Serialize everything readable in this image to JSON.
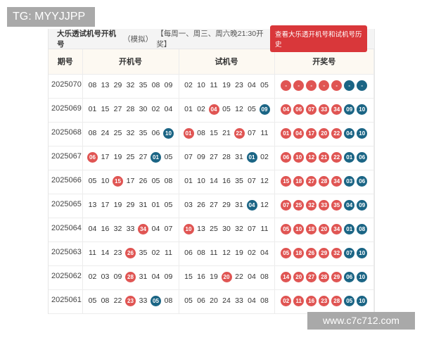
{
  "overlay_label": "TG: MYYJJPP",
  "watermark": "www.c7c712.com",
  "header": {
    "title": "大乐透试机号开机号",
    "subtitle": "（模拟）",
    "schedule": "【每周一、周三、周六晚21:30开奖】",
    "history_button": "查看大乐透开机号和试机号历史"
  },
  "columns": [
    "期号",
    "开机号",
    "试机号",
    "开奖号"
  ],
  "colors": {
    "red": "#e05553",
    "blue": "#1b6585",
    "button": "#d9373a"
  },
  "rows": [
    {
      "period": "2025070",
      "open": [
        [
          "08",
          ""
        ],
        [
          "13",
          ""
        ],
        [
          "29",
          ""
        ],
        [
          "32",
          ""
        ],
        [
          "35",
          ""
        ],
        [
          "08",
          ""
        ],
        [
          "09",
          ""
        ]
      ],
      "trial": [
        [
          "02",
          ""
        ],
        [
          "10",
          ""
        ],
        [
          "11",
          ""
        ],
        [
          "19",
          ""
        ],
        [
          "23",
          ""
        ],
        [
          "04",
          ""
        ],
        [
          "05",
          ""
        ]
      ],
      "win": [
        [
          "-",
          "red"
        ],
        [
          "-",
          "red"
        ],
        [
          "-",
          "red"
        ],
        [
          "-",
          "red"
        ],
        [
          "-",
          "red"
        ],
        [
          "-",
          "blue"
        ],
        [
          "-",
          "blue"
        ]
      ]
    },
    {
      "period": "2025069",
      "open": [
        [
          "01",
          ""
        ],
        [
          "15",
          ""
        ],
        [
          "27",
          ""
        ],
        [
          "28",
          ""
        ],
        [
          "30",
          ""
        ],
        [
          "02",
          ""
        ],
        [
          "04",
          ""
        ]
      ],
      "trial": [
        [
          "01",
          ""
        ],
        [
          "02",
          ""
        ],
        [
          "04",
          "red"
        ],
        [
          "05",
          ""
        ],
        [
          "12",
          ""
        ],
        [
          "05",
          ""
        ],
        [
          "09",
          "blue"
        ]
      ],
      "win": [
        [
          "04",
          "red"
        ],
        [
          "06",
          "red"
        ],
        [
          "07",
          "red"
        ],
        [
          "33",
          "red"
        ],
        [
          "34",
          "red"
        ],
        [
          "09",
          "blue"
        ],
        [
          "10",
          "blue"
        ]
      ]
    },
    {
      "period": "2025068",
      "open": [
        [
          "08",
          ""
        ],
        [
          "24",
          ""
        ],
        [
          "25",
          ""
        ],
        [
          "32",
          ""
        ],
        [
          "35",
          ""
        ],
        [
          "06",
          ""
        ],
        [
          "10",
          "blue"
        ]
      ],
      "trial": [
        [
          "01",
          "red"
        ],
        [
          "08",
          ""
        ],
        [
          "15",
          ""
        ],
        [
          "21",
          ""
        ],
        [
          "22",
          "red"
        ],
        [
          "07",
          ""
        ],
        [
          "11",
          ""
        ]
      ],
      "win": [
        [
          "01",
          "red"
        ],
        [
          "04",
          "red"
        ],
        [
          "17",
          "red"
        ],
        [
          "20",
          "red"
        ],
        [
          "22",
          "red"
        ],
        [
          "04",
          "blue"
        ],
        [
          "10",
          "blue"
        ]
      ]
    },
    {
      "period": "2025067",
      "open": [
        [
          "06",
          "red"
        ],
        [
          "17",
          ""
        ],
        [
          "19",
          ""
        ],
        [
          "25",
          ""
        ],
        [
          "27",
          ""
        ],
        [
          "01",
          "blue"
        ],
        [
          "05",
          ""
        ]
      ],
      "trial": [
        [
          "07",
          ""
        ],
        [
          "09",
          ""
        ],
        [
          "27",
          ""
        ],
        [
          "28",
          ""
        ],
        [
          "31",
          ""
        ],
        [
          "01",
          "blue"
        ],
        [
          "02",
          ""
        ]
      ],
      "win": [
        [
          "06",
          "red"
        ],
        [
          "10",
          "red"
        ],
        [
          "12",
          "red"
        ],
        [
          "21",
          "red"
        ],
        [
          "22",
          "red"
        ],
        [
          "01",
          "blue"
        ],
        [
          "06",
          "blue"
        ]
      ]
    },
    {
      "period": "2025066",
      "open": [
        [
          "05",
          ""
        ],
        [
          "10",
          ""
        ],
        [
          "15",
          "red"
        ],
        [
          "17",
          ""
        ],
        [
          "26",
          ""
        ],
        [
          "05",
          ""
        ],
        [
          "08",
          ""
        ]
      ],
      "trial": [
        [
          "01",
          ""
        ],
        [
          "10",
          ""
        ],
        [
          "14",
          ""
        ],
        [
          "16",
          ""
        ],
        [
          "35",
          ""
        ],
        [
          "07",
          ""
        ],
        [
          "12",
          ""
        ]
      ],
      "win": [
        [
          "15",
          "red"
        ],
        [
          "18",
          "red"
        ],
        [
          "27",
          "red"
        ],
        [
          "28",
          "red"
        ],
        [
          "34",
          "red"
        ],
        [
          "03",
          "blue"
        ],
        [
          "06",
          "blue"
        ]
      ]
    },
    {
      "period": "2025065",
      "open": [
        [
          "13",
          ""
        ],
        [
          "17",
          ""
        ],
        [
          "19",
          ""
        ],
        [
          "29",
          ""
        ],
        [
          "31",
          ""
        ],
        [
          "01",
          ""
        ],
        [
          "05",
          ""
        ]
      ],
      "trial": [
        [
          "03",
          ""
        ],
        [
          "26",
          ""
        ],
        [
          "27",
          ""
        ],
        [
          "29",
          ""
        ],
        [
          "31",
          ""
        ],
        [
          "04",
          "blue"
        ],
        [
          "12",
          ""
        ]
      ],
      "win": [
        [
          "07",
          "red"
        ],
        [
          "25",
          "red"
        ],
        [
          "32",
          "red"
        ],
        [
          "33",
          "red"
        ],
        [
          "35",
          "red"
        ],
        [
          "04",
          "blue"
        ],
        [
          "09",
          "blue"
        ]
      ]
    },
    {
      "period": "2025064",
      "open": [
        [
          "04",
          ""
        ],
        [
          "16",
          ""
        ],
        [
          "32",
          ""
        ],
        [
          "33",
          ""
        ],
        [
          "34",
          "red"
        ],
        [
          "04",
          ""
        ],
        [
          "07",
          ""
        ]
      ],
      "trial": [
        [
          "10",
          "red"
        ],
        [
          "13",
          ""
        ],
        [
          "25",
          ""
        ],
        [
          "30",
          ""
        ],
        [
          "32",
          ""
        ],
        [
          "07",
          ""
        ],
        [
          "11",
          ""
        ]
      ],
      "win": [
        [
          "05",
          "red"
        ],
        [
          "10",
          "red"
        ],
        [
          "18",
          "red"
        ],
        [
          "20",
          "red"
        ],
        [
          "34",
          "red"
        ],
        [
          "01",
          "blue"
        ],
        [
          "08",
          "blue"
        ]
      ]
    },
    {
      "period": "2025063",
      "open": [
        [
          "11",
          ""
        ],
        [
          "14",
          ""
        ],
        [
          "23",
          ""
        ],
        [
          "26",
          "red"
        ],
        [
          "35",
          ""
        ],
        [
          "02",
          ""
        ],
        [
          "11",
          ""
        ]
      ],
      "trial": [
        [
          "06",
          ""
        ],
        [
          "08",
          ""
        ],
        [
          "11",
          ""
        ],
        [
          "12",
          ""
        ],
        [
          "19",
          ""
        ],
        [
          "02",
          ""
        ],
        [
          "04",
          ""
        ]
      ],
      "win": [
        [
          "05",
          "red"
        ],
        [
          "18",
          "red"
        ],
        [
          "26",
          "red"
        ],
        [
          "29",
          "red"
        ],
        [
          "32",
          "red"
        ],
        [
          "07",
          "blue"
        ],
        [
          "10",
          "blue"
        ]
      ]
    },
    {
      "period": "2025062",
      "open": [
        [
          "02",
          ""
        ],
        [
          "03",
          ""
        ],
        [
          "09",
          ""
        ],
        [
          "28",
          "red"
        ],
        [
          "31",
          ""
        ],
        [
          "04",
          ""
        ],
        [
          "09",
          ""
        ]
      ],
      "trial": [
        [
          "15",
          ""
        ],
        [
          "16",
          ""
        ],
        [
          "19",
          ""
        ],
        [
          "20",
          "red"
        ],
        [
          "22",
          ""
        ],
        [
          "04",
          ""
        ],
        [
          "08",
          ""
        ]
      ],
      "win": [
        [
          "14",
          "red"
        ],
        [
          "20",
          "red"
        ],
        [
          "27",
          "red"
        ],
        [
          "28",
          "red"
        ],
        [
          "29",
          "red"
        ],
        [
          "06",
          "blue"
        ],
        [
          "10",
          "blue"
        ]
      ]
    },
    {
      "period": "2025061",
      "open": [
        [
          "05",
          ""
        ],
        [
          "08",
          ""
        ],
        [
          "22",
          ""
        ],
        [
          "23",
          "red"
        ],
        [
          "33",
          ""
        ],
        [
          "05",
          "blue"
        ],
        [
          "08",
          ""
        ]
      ],
      "trial": [
        [
          "05",
          ""
        ],
        [
          "06",
          ""
        ],
        [
          "20",
          ""
        ],
        [
          "24",
          ""
        ],
        [
          "33",
          ""
        ],
        [
          "04",
          ""
        ],
        [
          "08",
          ""
        ]
      ],
      "win": [
        [
          "02",
          "red"
        ],
        [
          "11",
          "red"
        ],
        [
          "16",
          "red"
        ],
        [
          "23",
          "red"
        ],
        [
          "28",
          "red"
        ],
        [
          "05",
          "blue"
        ],
        [
          "10",
          "blue"
        ]
      ]
    }
  ]
}
